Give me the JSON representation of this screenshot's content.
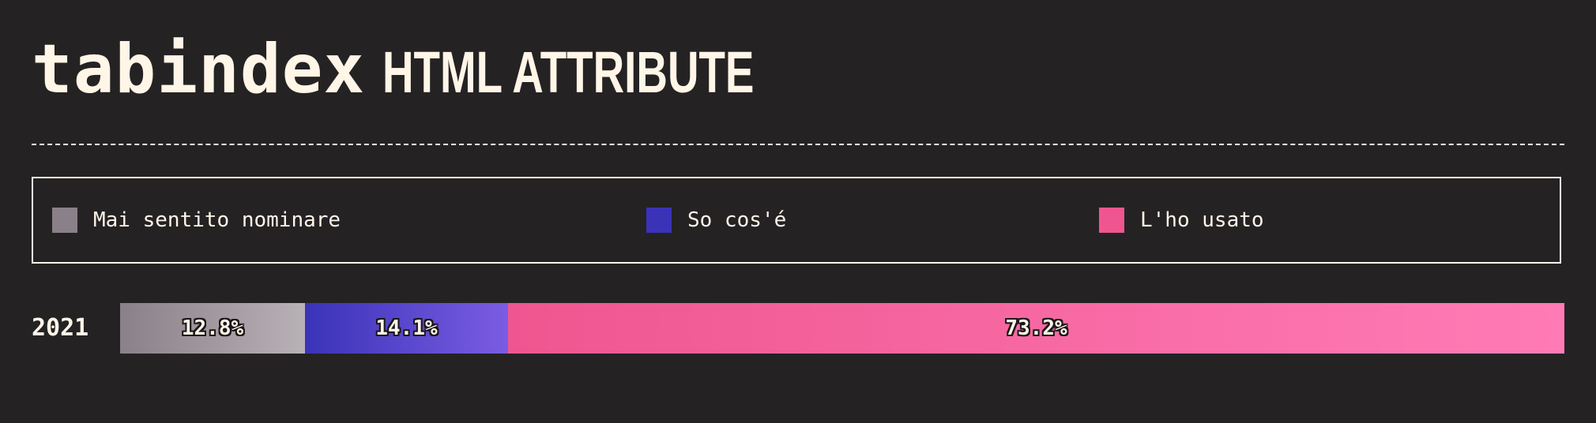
{
  "title": {
    "mono": "tabindex",
    "rest": "HTML ATTRIBUTE"
  },
  "chart_data": {
    "type": "bar",
    "orientation": "horizontal",
    "stacked": true,
    "categories": [
      "2021"
    ],
    "series": [
      {
        "name": "Mai sentito nominare",
        "values": [
          12.8
        ],
        "label": "12.8%",
        "color": "#8a8089",
        "gradient": [
          "#8a8089",
          "#b8b1b6"
        ]
      },
      {
        "name": "So cos'é",
        "values": [
          14.1
        ],
        "label": "14.1%",
        "color": "#3a33b8",
        "gradient": [
          "#3a33b8",
          "#7a5ce2"
        ]
      },
      {
        "name": "L'ho usato",
        "values": [
          73.2
        ],
        "label": "73.2%",
        "color": "#ef5690",
        "gradient": [
          "#ef5690",
          "#ff7bb6"
        ]
      }
    ],
    "xlim": [
      0,
      100
    ],
    "legend": "top",
    "grid": false
  }
}
